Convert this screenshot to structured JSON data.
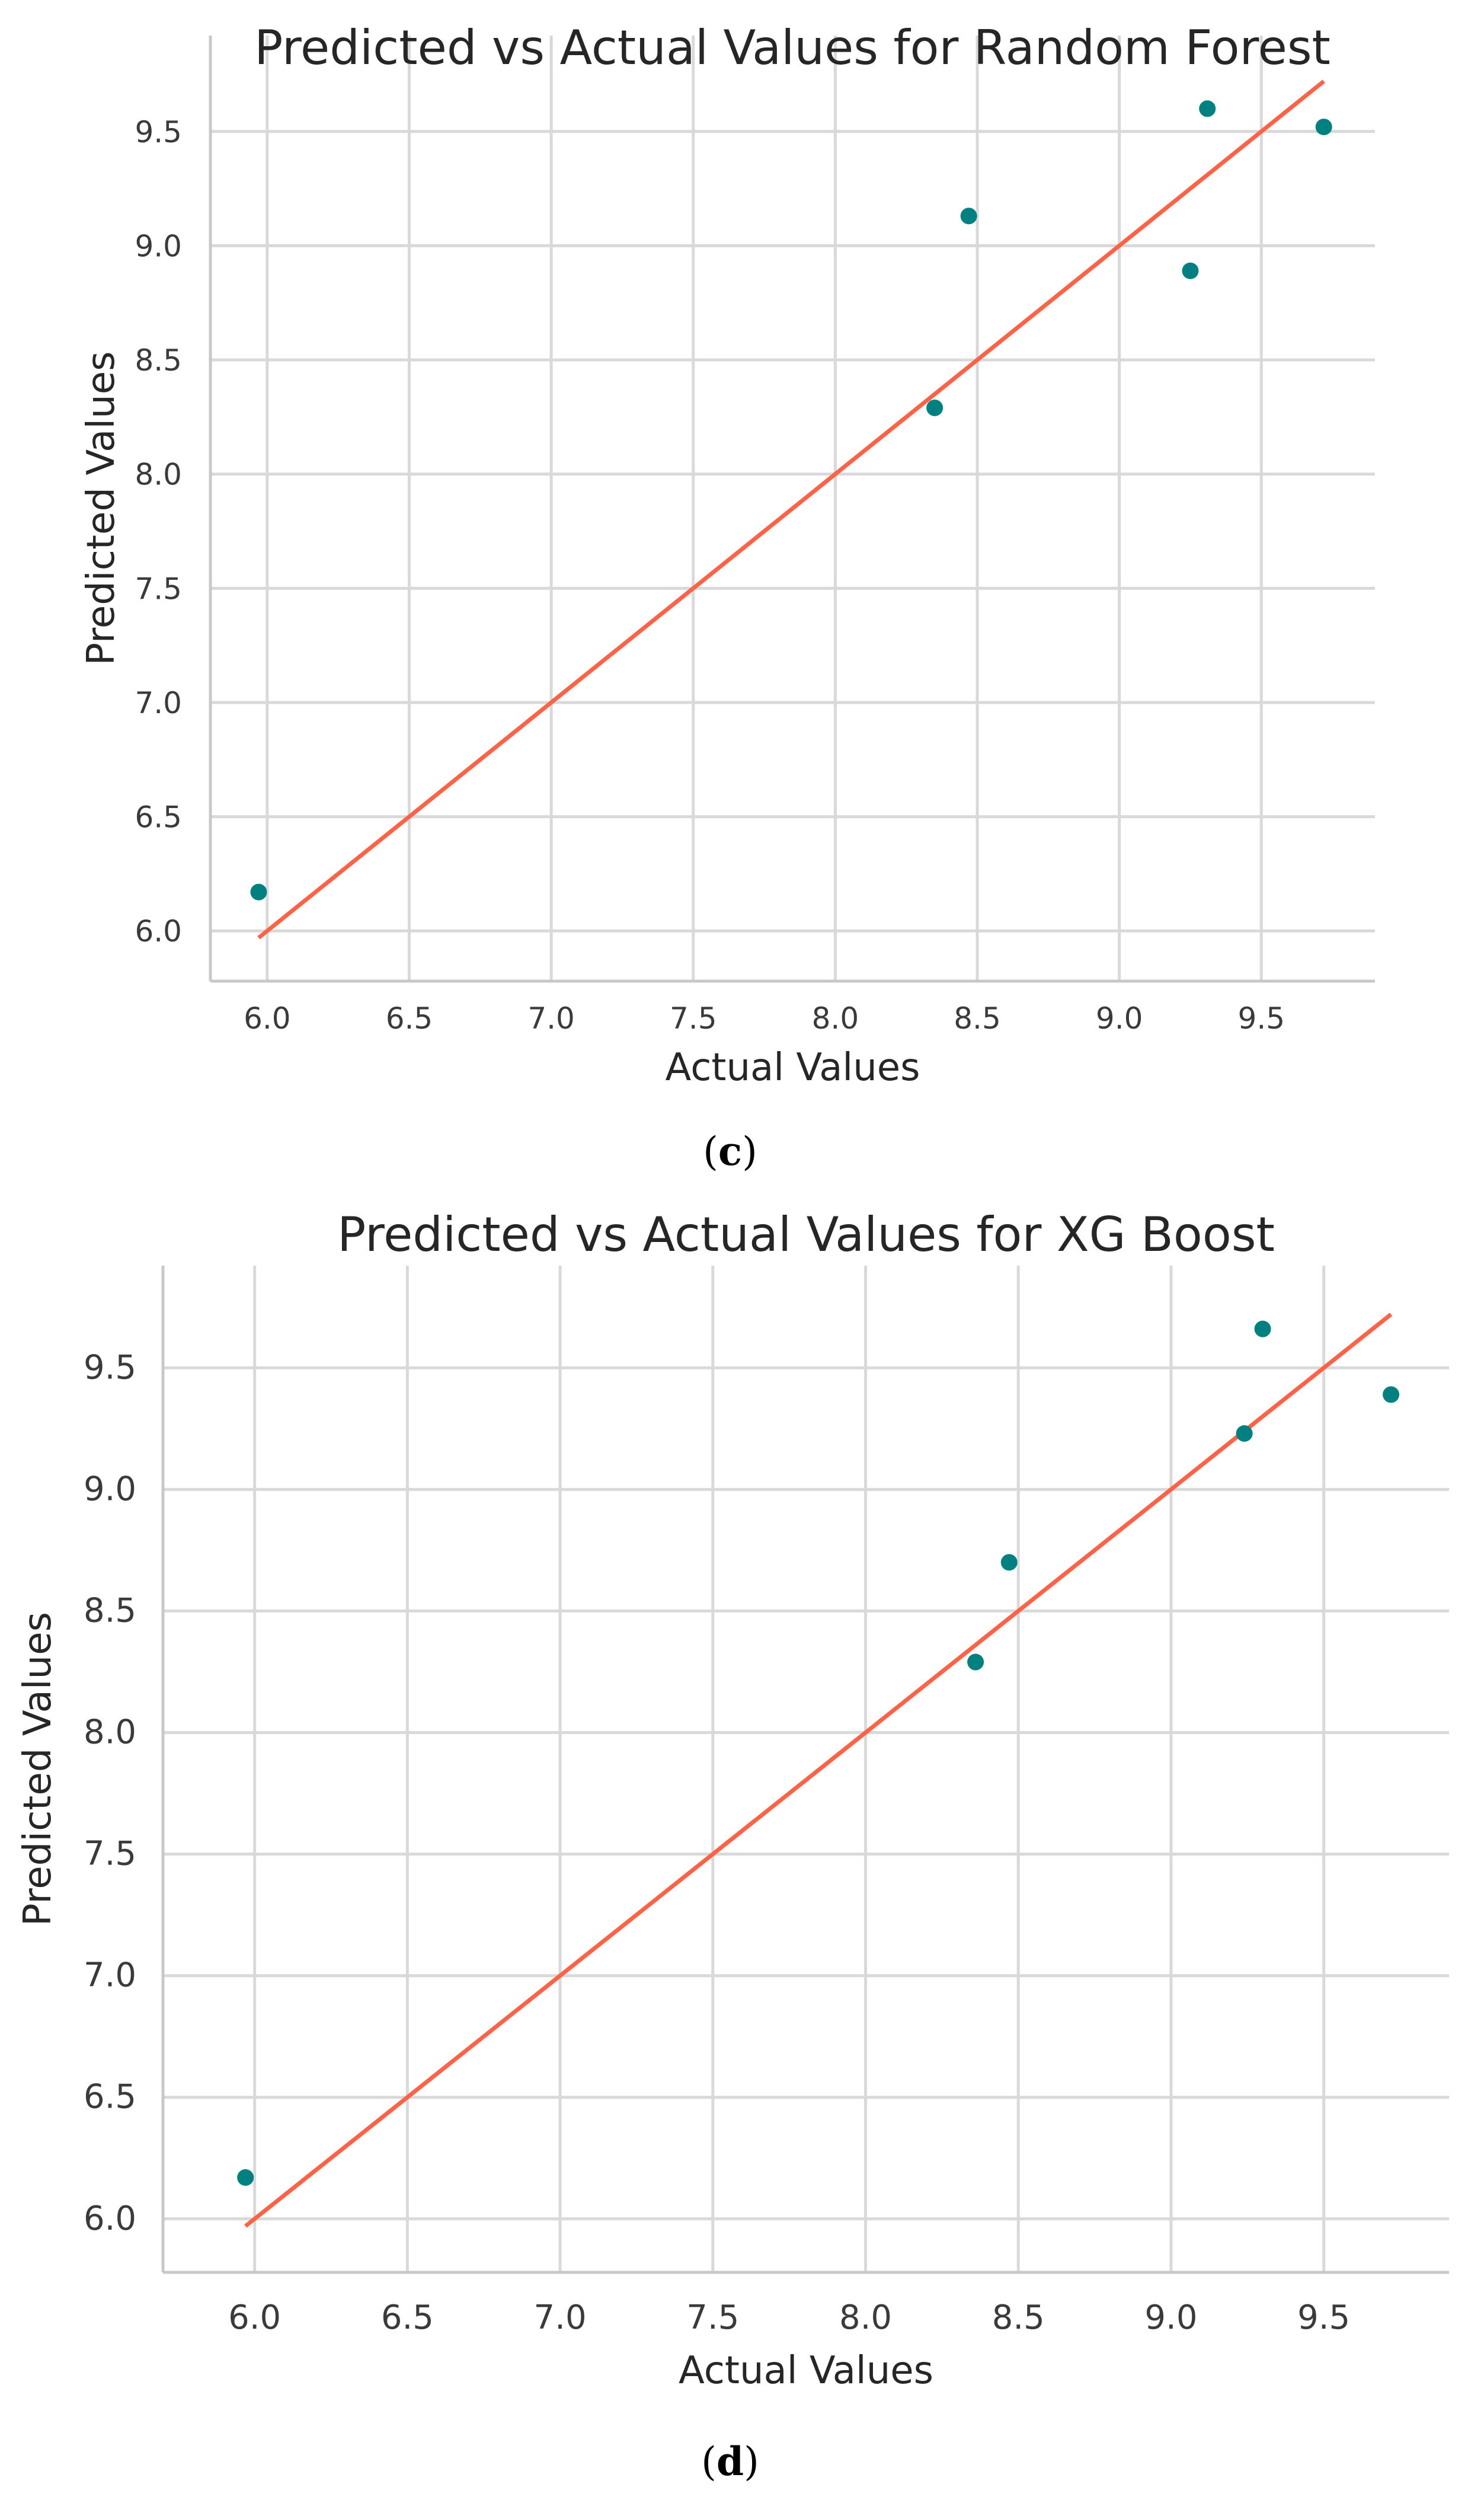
{
  "chart_data": [
    {
      "type": "scatter",
      "title": "Predicted vs Actual Values for Random Forest",
      "xlabel": "Actual Values",
      "ylabel": "Predicted Values",
      "xlim": [
        5.8,
        9.9
      ],
      "ylim": [
        5.78,
        9.92
      ],
      "xticks": [
        "6.0",
        "6.5",
        "7.0",
        "7.5",
        "8.0",
        "8.5",
        "9.0",
        "9.5"
      ],
      "yticks": [
        "6.0",
        "6.5",
        "7.0",
        "7.5",
        "8.0",
        "8.5",
        "9.0",
        "9.5"
      ],
      "grid": true,
      "points": [
        {
          "x": 5.97,
          "y": 6.17
        },
        {
          "x": 8.35,
          "y": 8.29
        },
        {
          "x": 8.47,
          "y": 9.13
        },
        {
          "x": 9.25,
          "y": 8.89
        },
        {
          "x": 9.31,
          "y": 9.6
        },
        {
          "x": 9.72,
          "y": 9.52
        }
      ],
      "reference_line": {
        "x": [
          5.97,
          9.72
        ],
        "y": [
          5.97,
          9.72
        ]
      },
      "point_color": "#008080",
      "line_color": "#ff6347",
      "caption_prefix": "(",
      "caption_letter": "c",
      "caption_suffix": ")"
    },
    {
      "type": "scatter",
      "title": "Predicted vs Actual Values for XG Boost",
      "xlabel": "Actual Values",
      "ylabel": "Predicted Values",
      "xlim": [
        5.7,
        9.91
      ],
      "ylim": [
        5.78,
        9.92
      ],
      "xticks": [
        "6.0",
        "6.5",
        "7.0",
        "7.5",
        "8.0",
        "8.5",
        "9.0",
        "9.5"
      ],
      "yticks": [
        "6.0",
        "6.5",
        "7.0",
        "7.5",
        "8.0",
        "8.5",
        "9.0",
        "9.5"
      ],
      "grid": true,
      "points": [
        {
          "x": 5.97,
          "y": 6.17
        },
        {
          "x": 8.36,
          "y": 8.29
        },
        {
          "x": 8.47,
          "y": 8.7
        },
        {
          "x": 9.24,
          "y": 9.23
        },
        {
          "x": 9.3,
          "y": 9.66
        },
        {
          "x": 9.72,
          "y": 9.39
        }
      ],
      "reference_line": {
        "x": [
          5.97,
          9.72
        ],
        "y": [
          5.97,
          9.72
        ]
      },
      "point_color": "#008080",
      "line_color": "#ff6347",
      "caption_prefix": "(",
      "caption_letter": "d",
      "caption_suffix": ")"
    }
  ]
}
